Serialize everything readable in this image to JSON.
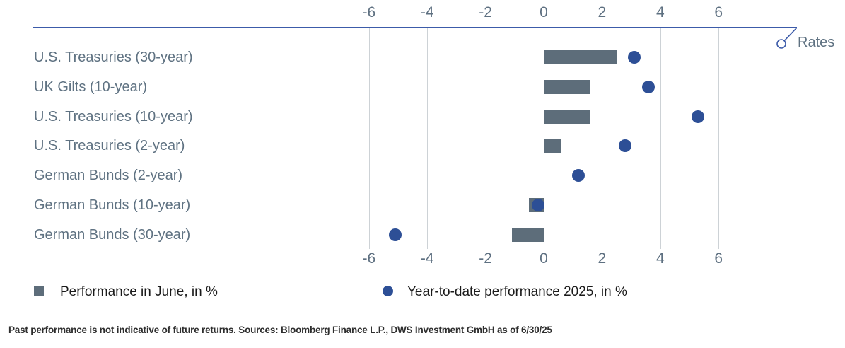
{
  "annotation": {
    "label": "Rates"
  },
  "colors": {
    "axis_blue": "#3c5ba9",
    "dot_blue": "#2d4f96",
    "bar_gray": "#5d6d7a",
    "grid_gray": "#cdd2d6",
    "label_gray": "#5f7282",
    "legend_text": "#1a1a1a",
    "footer_text": "#2e2e2e"
  },
  "chart_data": {
    "type": "bar",
    "orientation": "horizontal",
    "title": "",
    "categories": [
      "U.S. Treasuries (30-year)",
      "UK Gilts (10-year)",
      "U.S. Treasuries (10-year)",
      "U.S. Treasuries (2-year)",
      "German Bunds (2-year)",
      "German Bunds (10-year)",
      "German Bunds (30-year)"
    ],
    "series": [
      {
        "name": "Performance in June, in %",
        "marker": "square",
        "color": "#5d6d7a",
        "values": [
          2.5,
          1.6,
          1.6,
          0.6,
          0,
          -0.5,
          -1.1
        ]
      },
      {
        "name": "Year-to-date performance 2025, in %",
        "marker": "circle",
        "color": "#2d4f96",
        "values": [
          3.1,
          3.6,
          5.3,
          2.8,
          1.2,
          -0.2,
          -5.1
        ]
      }
    ],
    "x_ticks": [
      -6,
      -4,
      -2,
      0,
      2,
      4,
      6
    ],
    "xlim": [
      -7,
      8.5
    ],
    "axis_annotation": "Rates",
    "grid": true,
    "legend_position": "bottom"
  },
  "footer": {
    "disclaimer": "Past performance is not indicative of future returns. Sources: Bloomberg Finance L.P., DWS Investment GmbH as of 6/30/25"
  }
}
